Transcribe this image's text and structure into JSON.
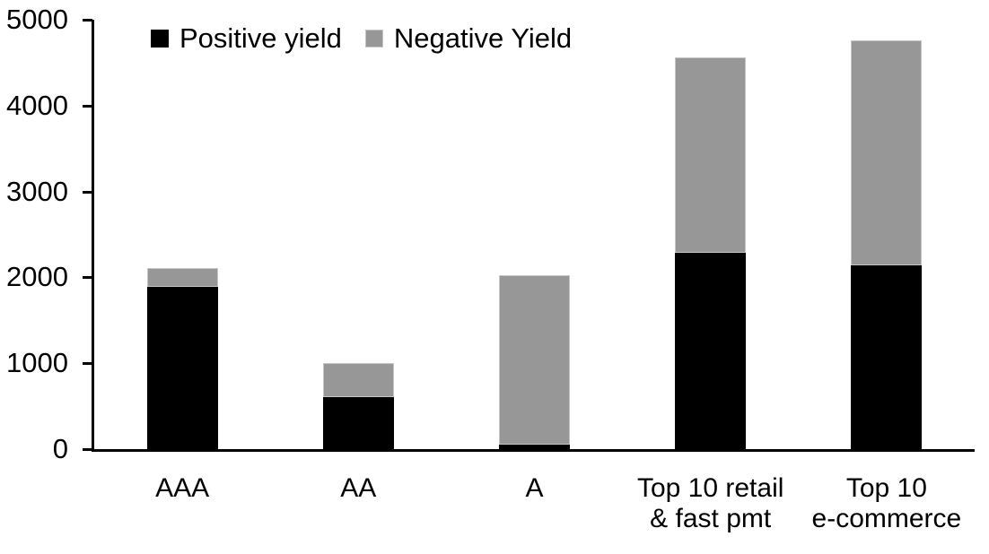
{
  "chart_data": {
    "type": "bar",
    "stacked": true,
    "title": "",
    "xlabel": "",
    "ylabel": "",
    "grid": false,
    "legend_position": "top-inside",
    "ylim": [
      0,
      5000
    ],
    "yticks": [
      0,
      1000,
      2000,
      3000,
      4000,
      5000
    ],
    "categories": [
      "AAA",
      "AA",
      "A",
      "Top 10 retail\n& fast pmt",
      "Top 10\ne-commerce"
    ],
    "series": [
      {
        "name": "Positive yield",
        "color": "#000000",
        "values": [
          1890,
          610,
          50,
          2290,
          2140
        ]
      },
      {
        "name": "Negative Yield",
        "color": "#979797",
        "border_color": "#c6c6c6",
        "values": [
          220,
          390,
          1980,
          2270,
          2620
        ]
      }
    ],
    "totals": [
      2110,
      1000,
      2030,
      4560,
      4760
    ]
  },
  "legend": {
    "items": [
      {
        "label": "Positive yield",
        "color": "#000000"
      },
      {
        "label": "Negative Yield",
        "color": "#979797"
      }
    ]
  }
}
